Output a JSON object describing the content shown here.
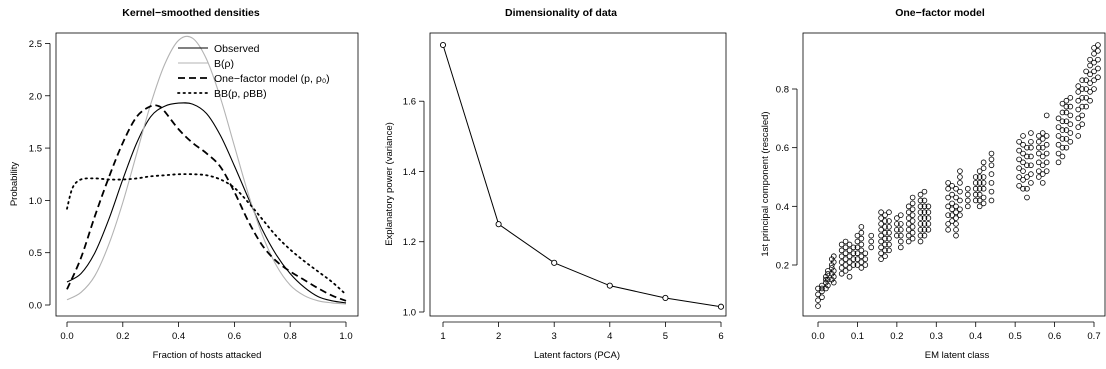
{
  "chart_data": [
    {
      "type": "line",
      "title": "Kernel−smoothed densities",
      "xlabel": "Fraction of hosts attacked",
      "ylabel": "Probability",
      "xlim": [
        0,
        1
      ],
      "ylim": [
        0,
        2.6
      ],
      "xticks": [
        "0.0",
        "0.2",
        "0.4",
        "0.6",
        "0.8",
        "1.0"
      ],
      "yticks": [
        "0.0",
        "0.5",
        "1.0",
        "1.5",
        "2.0",
        "2.5"
      ],
      "legend_position": "top-right",
      "series": [
        {
          "name": "Observed",
          "style": "solid",
          "color": "#000000",
          "x": [
            0,
            0.05,
            0.1,
            0.15,
            0.2,
            0.25,
            0.3,
            0.35,
            0.4,
            0.45,
            0.5,
            0.55,
            0.6,
            0.65,
            0.7,
            0.75,
            0.8,
            0.85,
            0.9,
            0.95,
            1.0
          ],
          "y": [
            0.22,
            0.3,
            0.5,
            0.82,
            1.2,
            1.55,
            1.8,
            1.9,
            1.93,
            1.92,
            1.83,
            1.62,
            1.33,
            1.02,
            0.72,
            0.48,
            0.3,
            0.17,
            0.08,
            0.04,
            0.02
          ]
        },
        {
          "name": "B(ρ)",
          "style": "solid",
          "color": "#b3b3b3",
          "x": [
            0,
            0.05,
            0.1,
            0.15,
            0.2,
            0.25,
            0.3,
            0.35,
            0.4,
            0.45,
            0.5,
            0.55,
            0.6,
            0.65,
            0.7,
            0.75,
            0.8,
            0.85,
            0.9,
            0.95,
            1.0
          ],
          "y": [
            0.05,
            0.12,
            0.28,
            0.58,
            0.98,
            1.45,
            1.92,
            2.3,
            2.53,
            2.55,
            2.35,
            1.98,
            1.52,
            1.06,
            0.67,
            0.38,
            0.19,
            0.09,
            0.04,
            0.02,
            0.01
          ]
        },
        {
          "name": "One−factor model (p, ρ₀)",
          "style": "dashed",
          "color": "#000000",
          "x": [
            0,
            0.05,
            0.1,
            0.15,
            0.2,
            0.25,
            0.3,
            0.33,
            0.35,
            0.4,
            0.45,
            0.5,
            0.55,
            0.6,
            0.65,
            0.7,
            0.75,
            0.8,
            0.85,
            0.9,
            0.95,
            1.0
          ],
          "y": [
            0.15,
            0.45,
            0.85,
            1.22,
            1.55,
            1.8,
            1.9,
            1.9,
            1.85,
            1.68,
            1.55,
            1.45,
            1.32,
            1.08,
            0.8,
            0.57,
            0.42,
            0.32,
            0.24,
            0.16,
            0.09,
            0.04
          ]
        },
        {
          "name": "BB(p, ρBB)",
          "style": "dotted",
          "color": "#000000",
          "x": [
            0,
            0.02,
            0.05,
            0.1,
            0.15,
            0.2,
            0.25,
            0.3,
            0.35,
            0.4,
            0.45,
            0.5,
            0.55,
            0.6,
            0.65,
            0.7,
            0.75,
            0.8,
            0.85,
            0.9,
            0.95,
            1.0
          ],
          "y": [
            0.92,
            1.12,
            1.2,
            1.21,
            1.2,
            1.2,
            1.21,
            1.23,
            1.24,
            1.25,
            1.25,
            1.24,
            1.2,
            1.12,
            0.98,
            0.82,
            0.66,
            0.53,
            0.42,
            0.32,
            0.22,
            0.1
          ]
        }
      ]
    },
    {
      "type": "line",
      "title": "Dimensionality of data",
      "xlabel": "Latent factors (PCA)",
      "ylabel": "Explanatory power (variance)",
      "xlim": [
        1,
        6
      ],
      "ylim": [
        1.0,
        1.76
      ],
      "xticks": [
        "1",
        "2",
        "3",
        "4",
        "5",
        "6"
      ],
      "yticks": [
        "1.0",
        "1.2",
        "1.4",
        "1.6"
      ],
      "x": [
        1,
        2,
        3,
        4,
        5,
        6
      ],
      "y": [
        1.76,
        1.25,
        1.14,
        1.075,
        1.04,
        1.015
      ]
    },
    {
      "type": "scatter",
      "title": "One−factor model",
      "xlabel": "EM latent class",
      "ylabel": "1st principal component (rescaled)",
      "xlim": [
        0,
        0.71
      ],
      "ylim": [
        0.03,
        0.95
      ],
      "xticks": [
        "0.0",
        "0.1",
        "0.2",
        "0.3",
        "0.4",
        "0.5",
        "0.6",
        "0.7"
      ],
      "yticks": [
        "0.2",
        "0.4",
        "0.6",
        "0.8"
      ],
      "columns": [
        {
          "x": 0.0,
          "y": [
            0.06,
            0.08,
            0.1,
            0.12
          ]
        },
        {
          "x": 0.01,
          "y": [
            0.09,
            0.11,
            0.12,
            0.13
          ]
        },
        {
          "x": 0.02,
          "y": [
            0.12,
            0.14,
            0.15,
            0.16
          ]
        },
        {
          "x": 0.025,
          "y": [
            0.13,
            0.15,
            0.17,
            0.18
          ]
        },
        {
          "x": 0.035,
          "y": [
            0.15,
            0.17,
            0.19,
            0.2,
            0.22
          ]
        },
        {
          "x": 0.04,
          "y": [
            0.14,
            0.16,
            0.18,
            0.21,
            0.23
          ]
        },
        {
          "x": 0.06,
          "y": [
            0.17,
            0.19,
            0.21,
            0.23,
            0.25,
            0.27
          ]
        },
        {
          "x": 0.07,
          "y": [
            0.18,
            0.2,
            0.22,
            0.24,
            0.26,
            0.28
          ]
        },
        {
          "x": 0.08,
          "y": [
            0.16,
            0.19,
            0.21,
            0.23,
            0.25,
            0.27
          ]
        },
        {
          "x": 0.09,
          "y": [
            0.2,
            0.22,
            0.24,
            0.26
          ]
        },
        {
          "x": 0.1,
          "y": [
            0.2,
            0.22,
            0.24,
            0.26,
            0.28,
            0.3
          ]
        },
        {
          "x": 0.11,
          "y": [
            0.19,
            0.21,
            0.23,
            0.25,
            0.27,
            0.29,
            0.31,
            0.33
          ]
        },
        {
          "x": 0.12,
          "y": [
            0.2,
            0.22,
            0.24
          ]
        },
        {
          "x": 0.135,
          "y": [
            0.26,
            0.28,
            0.3
          ]
        },
        {
          "x": 0.16,
          "y": [
            0.22,
            0.24,
            0.26,
            0.28,
            0.3,
            0.32,
            0.34,
            0.36,
            0.38
          ]
        },
        {
          "x": 0.17,
          "y": [
            0.23,
            0.25,
            0.27,
            0.29,
            0.31,
            0.33,
            0.35,
            0.37
          ]
        },
        {
          "x": 0.18,
          "y": [
            0.25,
            0.27,
            0.29,
            0.31,
            0.33,
            0.35,
            0.38
          ]
        },
        {
          "x": 0.2,
          "y": [
            0.3,
            0.32,
            0.34,
            0.36
          ]
        },
        {
          "x": 0.21,
          "y": [
            0.26,
            0.28,
            0.3,
            0.32,
            0.34,
            0.37
          ]
        },
        {
          "x": 0.23,
          "y": [
            0.28,
            0.3,
            0.32,
            0.34,
            0.36,
            0.38,
            0.4
          ]
        },
        {
          "x": 0.24,
          "y": [
            0.29,
            0.31,
            0.33,
            0.35,
            0.37,
            0.39,
            0.41,
            0.43
          ]
        },
        {
          "x": 0.26,
          "y": [
            0.28,
            0.3,
            0.32,
            0.34,
            0.36,
            0.38,
            0.4,
            0.42,
            0.44
          ]
        },
        {
          "x": 0.27,
          "y": [
            0.3,
            0.32,
            0.34,
            0.36,
            0.38,
            0.4,
            0.42,
            0.45
          ]
        },
        {
          "x": 0.28,
          "y": [
            0.32,
            0.34,
            0.36,
            0.38,
            0.4
          ]
        },
        {
          "x": 0.33,
          "y": [
            0.32,
            0.34,
            0.37,
            0.4,
            0.43,
            0.46,
            0.48
          ]
        },
        {
          "x": 0.34,
          "y": [
            0.35,
            0.37,
            0.39,
            0.41,
            0.44,
            0.47
          ]
        },
        {
          "x": 0.35,
          "y": [
            0.3,
            0.32,
            0.34,
            0.36,
            0.38,
            0.4,
            0.43,
            0.46
          ]
        },
        {
          "x": 0.36,
          "y": [
            0.37,
            0.39,
            0.42,
            0.45,
            0.48,
            0.5,
            0.52
          ]
        },
        {
          "x": 0.38,
          "y": [
            0.4,
            0.42,
            0.44,
            0.46
          ]
        },
        {
          "x": 0.4,
          "y": [
            0.42,
            0.44,
            0.46,
            0.48,
            0.5
          ]
        },
        {
          "x": 0.41,
          "y": [
            0.4,
            0.42,
            0.44,
            0.46,
            0.48,
            0.5,
            0.52
          ]
        },
        {
          "x": 0.42,
          "y": [
            0.41,
            0.43,
            0.46,
            0.48,
            0.5,
            0.53,
            0.55
          ]
        },
        {
          "x": 0.44,
          "y": [
            0.42,
            0.45,
            0.48,
            0.51,
            0.54,
            0.56,
            0.58
          ]
        },
        {
          "x": 0.51,
          "y": [
            0.47,
            0.5,
            0.53,
            0.56,
            0.59,
            0.62
          ]
        },
        {
          "x": 0.52,
          "y": [
            0.46,
            0.49,
            0.52,
            0.55,
            0.58,
            0.61,
            0.64
          ]
        },
        {
          "x": 0.53,
          "y": [
            0.43,
            0.46,
            0.5,
            0.54,
            0.57,
            0.6
          ]
        },
        {
          "x": 0.54,
          "y": [
            0.48,
            0.51,
            0.54,
            0.57,
            0.6,
            0.62,
            0.65
          ]
        },
        {
          "x": 0.56,
          "y": [
            0.5,
            0.52,
            0.55,
            0.58,
            0.6,
            0.62,
            0.64
          ]
        },
        {
          "x": 0.57,
          "y": [
            0.48,
            0.51,
            0.54,
            0.57,
            0.6,
            0.63,
            0.65
          ]
        },
        {
          "x": 0.58,
          "y": [
            0.52,
            0.55,
            0.58,
            0.61,
            0.64,
            0.71
          ]
        },
        {
          "x": 0.61,
          "y": [
            0.55,
            0.58,
            0.61,
            0.64,
            0.67,
            0.7
          ]
        },
        {
          "x": 0.62,
          "y": [
            0.57,
            0.6,
            0.63,
            0.66,
            0.69,
            0.72,
            0.75
          ]
        },
        {
          "x": 0.63,
          "y": [
            0.6,
            0.63,
            0.66,
            0.69,
            0.72,
            0.74,
            0.76
          ]
        },
        {
          "x": 0.64,
          "y": [
            0.62,
            0.65,
            0.68,
            0.71,
            0.74,
            0.77
          ]
        },
        {
          "x": 0.66,
          "y": [
            0.64,
            0.67,
            0.7,
            0.73,
            0.76,
            0.79,
            0.81
          ]
        },
        {
          "x": 0.67,
          "y": [
            0.68,
            0.71,
            0.74,
            0.77,
            0.8,
            0.83
          ]
        },
        {
          "x": 0.68,
          "y": [
            0.74,
            0.77,
            0.8,
            0.83,
            0.86
          ]
        },
        {
          "x": 0.69,
          "y": [
            0.76,
            0.79,
            0.82,
            0.85,
            0.88,
            0.9
          ]
        },
        {
          "x": 0.7,
          "y": [
            0.8,
            0.83,
            0.86,
            0.89,
            0.92,
            0.94
          ]
        },
        {
          "x": 0.71,
          "y": [
            0.84,
            0.87,
            0.9,
            0.93,
            0.95
          ]
        }
      ]
    }
  ]
}
